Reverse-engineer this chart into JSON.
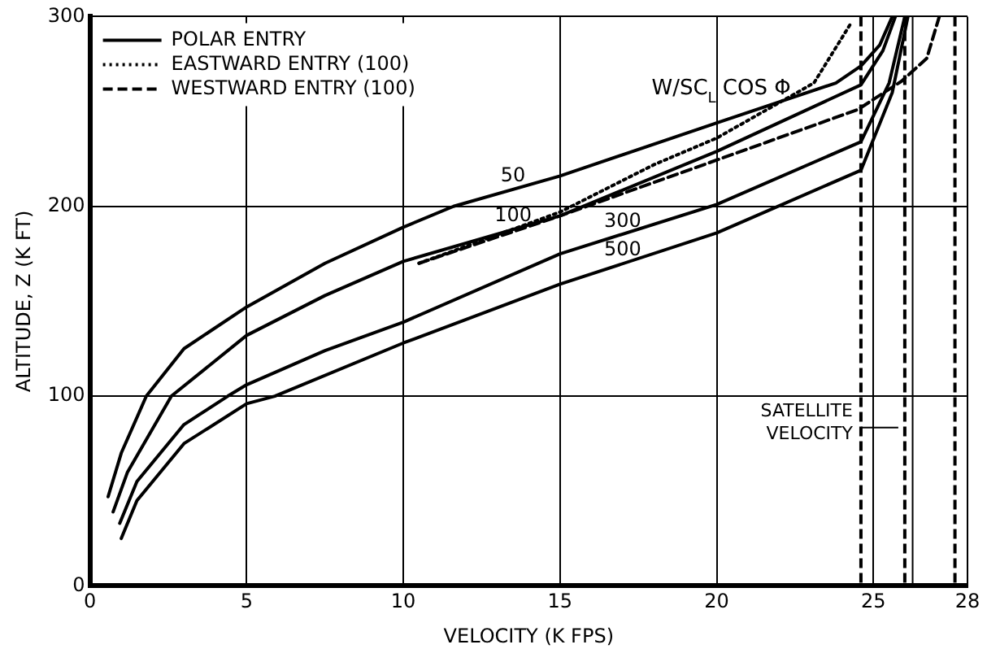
{
  "chart_data": {
    "type": "line",
    "xlabel": "VELOCITY (K FPS)",
    "ylabel": "ALTITUDE, Z (K FT)",
    "xlim": [
      0,
      28
    ],
    "xticks": [
      0,
      5,
      10,
      15,
      20,
      25,
      28
    ],
    "ylim": [
      0,
      300
    ],
    "yticks": [
      0,
      100,
      200,
      300
    ],
    "grid": true,
    "legend": "top left",
    "marker": "none",
    "series": [
      {
        "name": "POLAR ENTRY",
        "color": "#000000",
        "line_style": "solid",
        "x": [
          0.58,
          1,
          1.8,
          3,
          5,
          7.5,
          10,
          11.6,
          15,
          20,
          23.8,
          24.6,
          25.2,
          25.6
        ],
        "values": [
          47,
          70,
          100,
          125,
          147,
          170,
          189,
          200,
          216,
          244,
          265,
          274,
          285,
          300
        ]
      },
      {
        "color": "#000000",
        "line_style": "solid",
        "x": [
          0.74,
          1.2,
          2.6,
          5,
          7.5,
          10,
          15,
          20,
          24.6,
          25.3,
          25.7
        ],
        "values": [
          39,
          60,
          100,
          132,
          153,
          171,
          195,
          229,
          264,
          282,
          300
        ]
      },
      {
        "color": "#000000",
        "line_style": "solid",
        "x": [
          0.95,
          1.5,
          3,
          4.4,
          5,
          7.5,
          10,
          15,
          20,
          24.6,
          25.5,
          26
        ],
        "values": [
          33,
          55,
          85,
          100,
          106,
          124,
          139,
          175,
          201,
          234,
          265,
          300
        ]
      },
      {
        "color": "#000000",
        "line_style": "solid",
        "x": [
          1,
          1.5,
          3,
          5,
          5.9,
          10,
          15,
          20,
          24.6,
          25.6,
          26.1
        ],
        "values": [
          25,
          45,
          75,
          96,
          100,
          128,
          159,
          186,
          219,
          260,
          300
        ]
      },
      {
        "name": "EASTWARD ENTRY (100)",
        "color": "#000000",
        "line_style": "dotted",
        "x": [
          10.5,
          15,
          18,
          20,
          23.1,
          24.3
        ],
        "values": [
          170,
          197,
          222,
          236,
          265,
          297
        ]
      },
      {
        "name": "WESTWARD ENTRY (100)",
        "color": "#000000",
        "line_style": "dashed",
        "x": [
          10.5,
          15,
          20.1,
          24.5,
          25.9,
          26.7,
          27.1
        ],
        "values": [
          170,
          195,
          225,
          251,
          266,
          278,
          300
        ]
      }
    ],
    "ref_lines": [
      {
        "axis": "x",
        "value": 24.6,
        "line_style": "dashed",
        "color": "#000000"
      },
      {
        "axis": "x",
        "value": 26,
        "line_style": "dashed",
        "color": "#000000"
      },
      {
        "axis": "x",
        "value": 26.25,
        "line_style": "solid",
        "color": "#000000"
      },
      {
        "axis": "x",
        "value": 27.6,
        "line_style": "dashed",
        "color": "#000000"
      }
    ],
    "annotations": [
      "W/SC$_{L}$ COS Φ",
      {
        "text": "50",
        "x": 13.5,
        "y": 209
      },
      {
        "text": "100",
        "x": 13.5,
        "y": 188
      },
      {
        "text": "300",
        "x": 17,
        "y": 185
      },
      {
        "text": "500",
        "x": 17,
        "y": 170
      },
      {
        "text": "SATELLITE VELOCITY",
        "x": 24.6,
        "y": 80
      }
    ]
  }
}
